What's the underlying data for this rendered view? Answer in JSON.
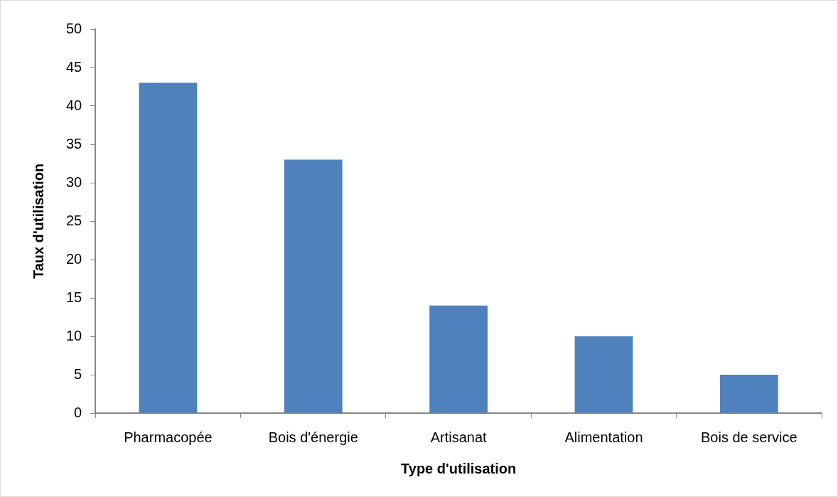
{
  "chart_data": {
    "type": "bar",
    "xlabel": "Type d'utilisation",
    "ylabel": "Taux d'utilisation",
    "categories": [
      "Pharmacopée",
      "Bois d'énergie",
      "Artisanat",
      "Alimentation",
      "Bois de service"
    ],
    "values": [
      43,
      33,
      14,
      10,
      5
    ],
    "color": "#4f81bd",
    "ylim": [
      0,
      50
    ],
    "yticks": [
      0,
      5,
      10,
      15,
      20,
      25,
      30,
      35,
      40,
      45,
      50
    ]
  }
}
